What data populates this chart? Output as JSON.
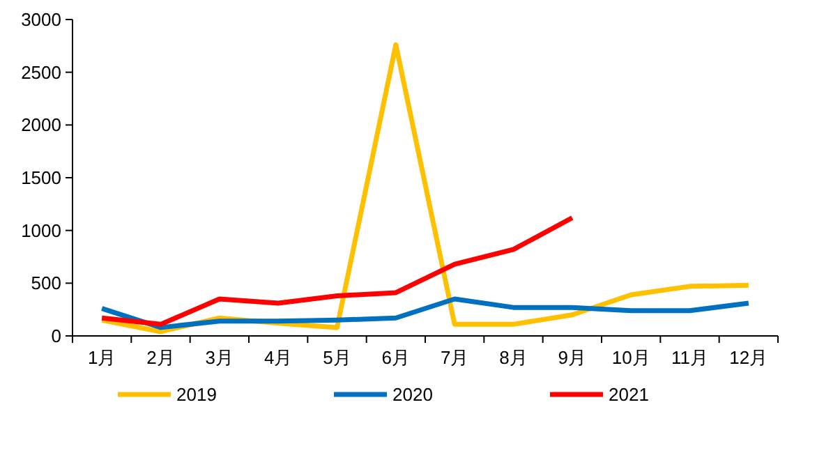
{
  "chart_data": {
    "type": "line",
    "categories": [
      "1月",
      "2月",
      "3月",
      "4月",
      "5月",
      "6月",
      "7月",
      "8月",
      "9月",
      "10月",
      "11月",
      "12月"
    ],
    "ylim": [
      0,
      3000
    ],
    "yticks": [
      0,
      500,
      1000,
      1500,
      2000,
      2500,
      3000
    ],
    "grid": false,
    "legend": "bottom",
    "marker": "none",
    "line_style": "solid",
    "series": [
      {
        "name": "2019",
        "color": "#ffc000",
        "values": [
          150,
          40,
          170,
          120,
          80,
          2760,
          110,
          110,
          200,
          390,
          470,
          480
        ]
      },
      {
        "name": "2020",
        "color": "#0070c0",
        "values": [
          260,
          80,
          140,
          140,
          150,
          170,
          350,
          270,
          270,
          240,
          240,
          310
        ]
      },
      {
        "name": "2021",
        "color": "#ff0000",
        "values": [
          170,
          110,
          350,
          310,
          380,
          410,
          680,
          820,
          1120,
          null,
          null,
          null
        ]
      }
    ]
  }
}
